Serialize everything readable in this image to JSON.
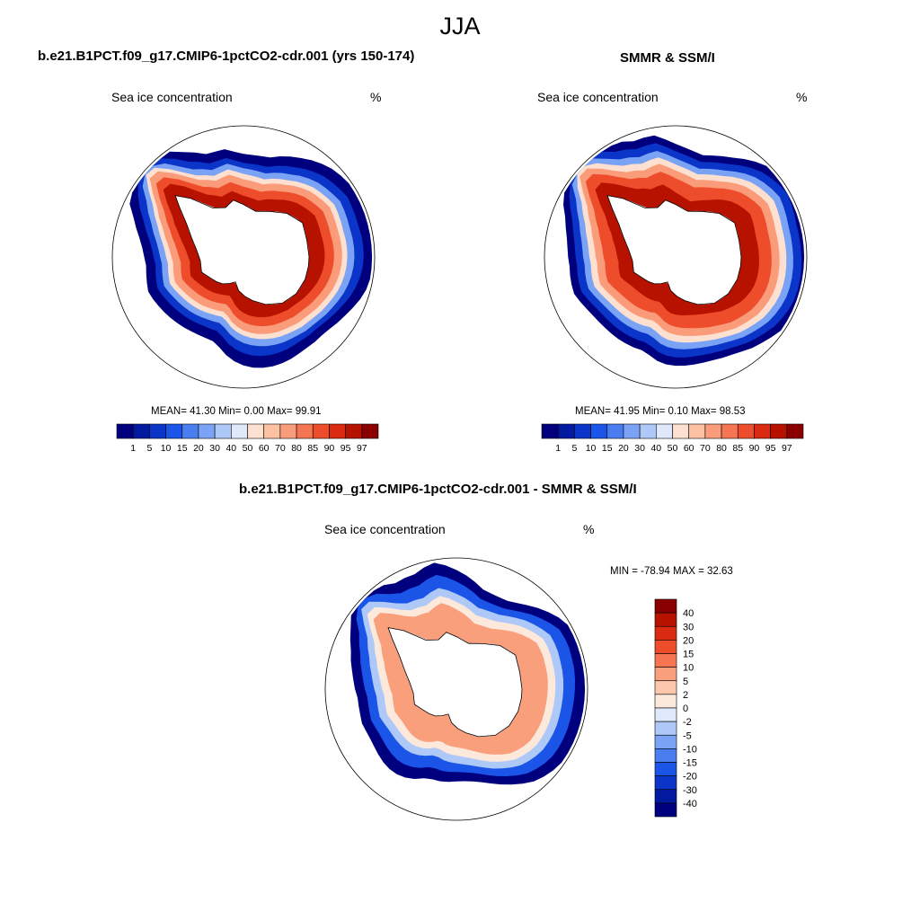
{
  "title": "JJA",
  "colors": {
    "abs_levels": [
      "#00007f",
      "#021aa0",
      "#0a35c8",
      "#1a55e8",
      "#4a7ef0",
      "#7aa3f5",
      "#aec8f8",
      "#dfe9fb",
      "#fde0d0",
      "#fcc0a3",
      "#fa9b7a",
      "#f57452",
      "#ee4d2b",
      "#db2a12",
      "#b71200",
      "#8a0000"
    ],
    "diff_levels": [
      "#00007f",
      "#021aa0",
      "#0a35c8",
      "#1a55e8",
      "#4a7ef0",
      "#7aa3f5",
      "#aec8f8",
      "#dfe9fb",
      "#fde8dc",
      "#fcc7ac",
      "#fa9f7c",
      "#f57452",
      "#ee4d2b",
      "#db2a12",
      "#b71200",
      "#8a0000"
    ],
    "land": "#ffffff",
    "coast": "#000000"
  },
  "panels": [
    {
      "id": "model",
      "title": "b.e21.B1PCT.f09_g17.CMIP6-1pctCO2-cdr.001 (yrs 150-174)",
      "left_label": "Sea ice concentration",
      "right_label": "%",
      "stats": "MEAN=  41.30  Min=   0.00  Max=  99.91"
    },
    {
      "id": "obs",
      "title": "SMMR & SSM/I",
      "left_label": "Sea ice concentration",
      "right_label": "%",
      "stats": "MEAN=  41.95  Min=   0.10  Max=  98.53"
    },
    {
      "id": "diff",
      "title": "b.e21.B1PCT.f09_g17.CMIP6-1pctCO2-cdr.001 - SMMR & SSM/I",
      "left_label": "Sea ice concentration",
      "right_label": "%",
      "stats": "MIN = -78.94 MAX =  32.63"
    }
  ],
  "chart_data": [
    {
      "type": "heatmap",
      "projection": "south-polar-stereographic",
      "season": "JJA",
      "title": "b.e21.B1PCT.f09_g17.CMIP6-1pctCO2-cdr.001 (yrs 150-174)",
      "variable": "Sea ice concentration",
      "units": "%",
      "mean": 41.3,
      "min": 0.0,
      "max": 99.91,
      "colorbar_levels": [
        1,
        5,
        10,
        15,
        20,
        30,
        40,
        50,
        60,
        70,
        80,
        85,
        90,
        95,
        97
      ],
      "colorbar_labels": [
        "1",
        "5",
        "10",
        "15",
        "20",
        "30",
        "40",
        "50",
        "60",
        "70",
        "80",
        "85",
        "90",
        "95",
        "97"
      ]
    },
    {
      "type": "heatmap",
      "projection": "south-polar-stereographic",
      "season": "JJA",
      "title": "SMMR & SSM/I",
      "variable": "Sea ice concentration",
      "units": "%",
      "mean": 41.95,
      "min": 0.1,
      "max": 98.53,
      "colorbar_levels": [
        1,
        5,
        10,
        15,
        20,
        30,
        40,
        50,
        60,
        70,
        80,
        85,
        90,
        95,
        97
      ],
      "colorbar_labels": [
        "1",
        "5",
        "10",
        "15",
        "20",
        "30",
        "40",
        "50",
        "60",
        "70",
        "80",
        "85",
        "90",
        "95",
        "97"
      ]
    },
    {
      "type": "heatmap",
      "projection": "south-polar-stereographic",
      "season": "JJA",
      "title": "b.e21.B1PCT.f09_g17.CMIP6-1pctCO2-cdr.001 - SMMR & SSM/I",
      "variable": "Sea ice concentration",
      "units": "%",
      "min": -78.94,
      "max": 32.63,
      "colorbar_levels": [
        40,
        30,
        20,
        15,
        10,
        5,
        2,
        0,
        -2,
        -5,
        -10,
        -15,
        -20,
        -30,
        -40
      ],
      "colorbar_labels": [
        "40",
        "30",
        "20",
        "15",
        "10",
        "5",
        "2",
        "0",
        "-2",
        "-5",
        "-10",
        "-15",
        "-20",
        "-30",
        "-40"
      ]
    }
  ]
}
